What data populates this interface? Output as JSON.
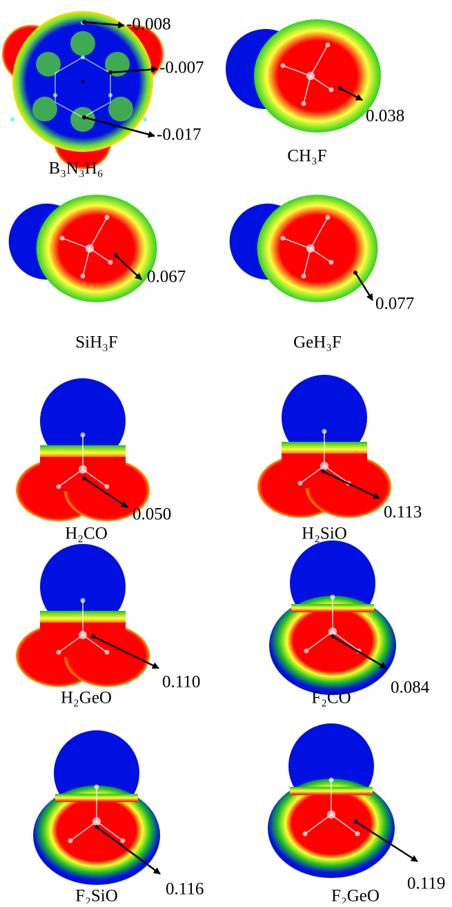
{
  "panels": [
    {
      "label": "B₃N₃H₆",
      "values": [
        "-0.008",
        "-0.007",
        "-0.017"
      ]
    },
    {
      "label": "CH₃F",
      "values": [
        "0.038"
      ]
    },
    {
      "label": "SiH₃F",
      "values": [
        "0.067"
      ]
    },
    {
      "label": "GeH₃F",
      "values": [
        "0.077"
      ]
    },
    {
      "label": "H₂CO",
      "values": [
        "0.050"
      ]
    },
    {
      "label": "H₂SiO",
      "values": [
        "0.113"
      ]
    },
    {
      "label": "H₂GeO",
      "values": [
        "0.110"
      ]
    },
    {
      "label": "F₂CO",
      "values": [
        "0.084"
      ]
    },
    {
      "label": "F₂SiO",
      "values": [
        "0.116"
      ]
    },
    {
      "label": "F₂GeO",
      "values": [
        "0.119"
      ]
    }
  ]
}
